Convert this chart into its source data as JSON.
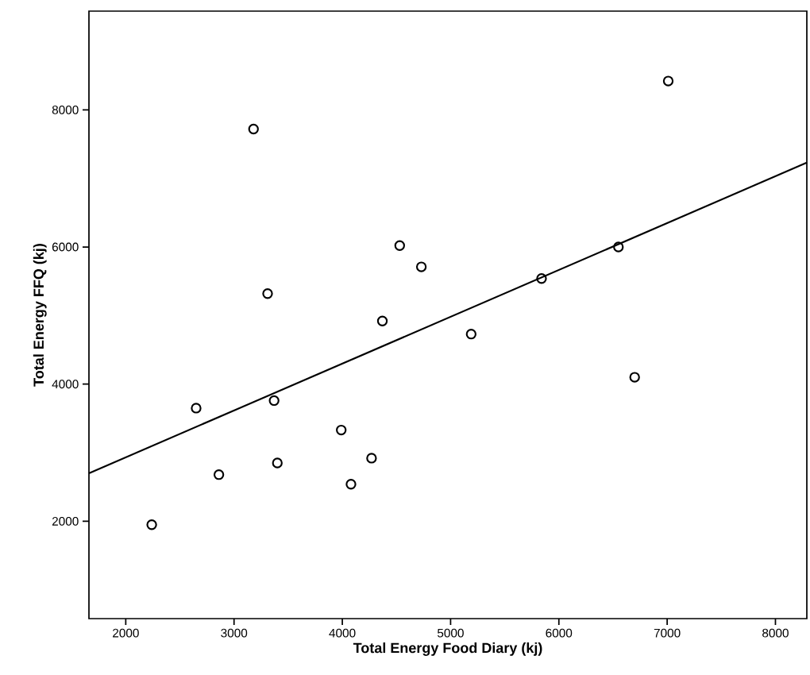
{
  "chart_data": {
    "type": "scatter",
    "xlabel": "Total Energy Food Diary (kj)",
    "ylabel": "Total Energy FFQ (kj)",
    "xlim": [
      1660,
      8290
    ],
    "ylim": [
      580,
      9440
    ],
    "xticks": [
      2000,
      3000,
      4000,
      5000,
      6000,
      7000,
      8000
    ],
    "yticks": [
      2000,
      4000,
      6000,
      8000
    ],
    "grid": false,
    "series": [
      {
        "color": "#000000",
        "marker": "circle",
        "x": [
          3180,
          4530,
          4730,
          3310,
          4370,
          5190,
          2650,
          3370,
          3990,
          4270,
          3400,
          2860,
          4080,
          2240,
          7010,
          5840,
          6550,
          6700
        ],
        "values": [
          7720,
          6020,
          5710,
          5320,
          4920,
          4730,
          3650,
          3760,
          3330,
          2920,
          2850,
          2680,
          2540,
          1950,
          8420,
          5540,
          6000,
          4100
        ]
      },
      {
        "type": "line",
        "color": "#000000",
        "marker": "none",
        "x": [
          1660,
          8290
        ],
        "values": [
          2700,
          7230
        ]
      }
    ]
  }
}
